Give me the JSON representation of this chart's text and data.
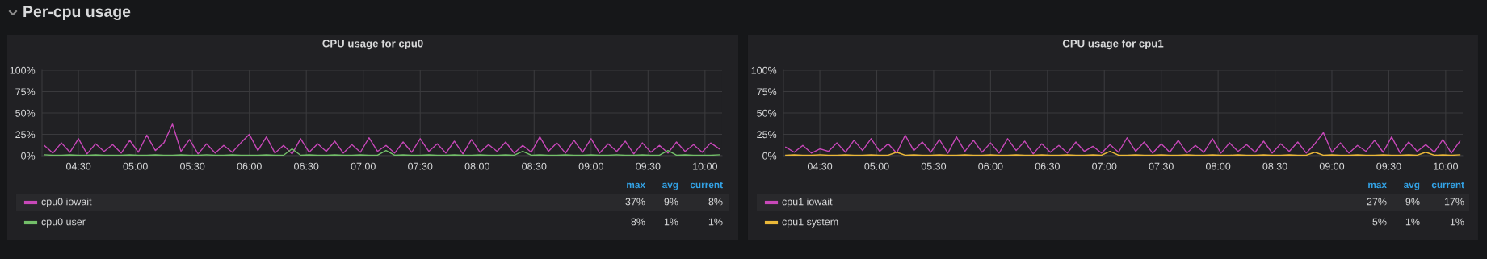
{
  "chart_data": [
    {
      "type": "other",
      "title": "Per-cpu usage"
    },
    {
      "type": "line",
      "title": "CPU usage for cpu0",
      "xlim": [
        4.18,
        10.15
      ],
      "ylim": [
        0,
        100
      ],
      "x": [
        4.2,
        4.275,
        4.35,
        4.425,
        4.5,
        4.575,
        4.65,
        4.725,
        4.8,
        4.875,
        4.95,
        5.025,
        5.1,
        5.175,
        5.25,
        5.325,
        5.4,
        5.475,
        5.55,
        5.625,
        5.7,
        5.775,
        5.85,
        5.925,
        6.0,
        6.075,
        6.15,
        6.225,
        6.3,
        6.375,
        6.45,
        6.525,
        6.6,
        6.675,
        6.75,
        6.825,
        6.9,
        6.975,
        7.05,
        7.125,
        7.2,
        7.275,
        7.35,
        7.425,
        7.5,
        7.575,
        7.65,
        7.725,
        7.8,
        7.875,
        7.95,
        8.025,
        8.1,
        8.175,
        8.25,
        8.325,
        8.4,
        8.475,
        8.55,
        8.625,
        8.7,
        8.775,
        8.85,
        8.925,
        9.0,
        9.075,
        9.15,
        9.225,
        9.3,
        9.375,
        9.45,
        9.525,
        9.6,
        9.675,
        9.75,
        9.825,
        9.9,
        9.975,
        10.05,
        10.125
      ],
      "xticks": [
        {
          "value": 4.5,
          "label": "04:30"
        },
        {
          "value": 5,
          "label": "05:00"
        },
        {
          "value": 5.5,
          "label": "05:30"
        },
        {
          "value": 6,
          "label": "06:00"
        },
        {
          "value": 6.5,
          "label": "06:30"
        },
        {
          "value": 7,
          "label": "07:00"
        },
        {
          "value": 7.5,
          "label": "07:30"
        },
        {
          "value": 8,
          "label": "08:00"
        },
        {
          "value": 8.5,
          "label": "08:30"
        },
        {
          "value": 9,
          "label": "09:00"
        },
        {
          "value": 9.5,
          "label": "09:30"
        },
        {
          "value": 10,
          "label": "10:00"
        }
      ],
      "yticks": [
        {
          "value": 0,
          "label": "0%"
        },
        {
          "value": 25,
          "label": "25%"
        },
        {
          "value": 50,
          "label": "50%"
        },
        {
          "value": 75,
          "label": "75%"
        },
        {
          "value": 100,
          "label": "100%"
        }
      ],
      "grid": true,
      "legend": "bottom",
      "series": [
        {
          "name": "cpu0 iowait",
          "color": "#c848b9",
          "values": [
            12,
            3,
            15,
            4,
            20,
            2,
            14,
            5,
            13,
            3,
            18,
            4,
            24,
            6,
            15,
            37,
            5,
            19,
            2,
            14,
            3,
            12,
            4,
            15,
            25,
            6,
            22,
            3,
            12,
            2,
            20,
            4,
            14,
            5,
            17,
            3,
            13,
            4,
            21,
            5,
            12,
            3,
            16,
            4,
            20,
            5,
            14,
            3,
            17,
            2,
            19,
            4,
            13,
            5,
            16,
            3,
            12,
            4,
            22,
            5,
            15,
            3,
            18,
            4,
            20,
            3,
            14,
            5,
            17,
            2,
            15,
            4,
            12,
            3,
            16,
            5,
            13,
            4,
            15,
            8
          ]
        },
        {
          "name": "cpu0 user",
          "color": "#73bf69",
          "values": [
            1,
            0.5,
            0.5,
            1,
            0.5,
            0.5,
            1,
            0.5,
            0.5,
            0.5,
            1,
            0.5,
            0.5,
            1,
            0.5,
            0.5,
            1,
            0.5,
            0.5,
            1,
            0.5,
            0.5,
            1,
            0.5,
            0.5,
            0.5,
            1,
            0.5,
            0.5,
            8,
            0.5,
            1,
            0.5,
            0.5,
            1,
            0.5,
            0.5,
            1,
            0.5,
            0.5,
            6,
            0.5,
            1,
            0.5,
            0.5,
            1,
            0.5,
            0.5,
            1,
            0.5,
            0.5,
            1,
            0.5,
            0.5,
            1,
            0.5,
            5,
            0.5,
            1,
            0.5,
            0.5,
            1,
            0.5,
            0.5,
            1,
            0.5,
            0.5,
            1,
            0.5,
            0.5,
            1,
            0.5,
            0.5,
            6,
            0.5,
            1,
            0.5,
            0.5,
            0.5,
            1
          ]
        }
      ],
      "annotations": [
        "max",
        "avg",
        "current",
        "37%",
        "9%",
        "8%",
        "8%",
        "1%",
        "1%"
      ]
    },
    {
      "type": "line",
      "title": "CPU usage for cpu1",
      "xlim": [
        4.18,
        10.15
      ],
      "ylim": [
        0,
        100
      ],
      "x": [
        4.2,
        4.275,
        4.35,
        4.425,
        4.5,
        4.575,
        4.65,
        4.725,
        4.8,
        4.875,
        4.95,
        5.025,
        5.1,
        5.175,
        5.25,
        5.325,
        5.4,
        5.475,
        5.55,
        5.625,
        5.7,
        5.775,
        5.85,
        5.925,
        6.0,
        6.075,
        6.15,
        6.225,
        6.3,
        6.375,
        6.45,
        6.525,
        6.6,
        6.675,
        6.75,
        6.825,
        6.9,
        6.975,
        7.05,
        7.125,
        7.2,
        7.275,
        7.35,
        7.425,
        7.5,
        7.575,
        7.65,
        7.725,
        7.8,
        7.875,
        7.95,
        8.025,
        8.1,
        8.175,
        8.25,
        8.325,
        8.4,
        8.475,
        8.55,
        8.625,
        8.7,
        8.775,
        8.85,
        8.925,
        9.0,
        9.075,
        9.15,
        9.225,
        9.3,
        9.375,
        9.45,
        9.525,
        9.6,
        9.675,
        9.75,
        9.825,
        9.9,
        9.975,
        10.05,
        10.125
      ],
      "xticks": [
        {
          "value": 4.5,
          "label": "04:30"
        },
        {
          "value": 5,
          "label": "05:00"
        },
        {
          "value": 5.5,
          "label": "05:30"
        },
        {
          "value": 6,
          "label": "06:00"
        },
        {
          "value": 6.5,
          "label": "06:30"
        },
        {
          "value": 7,
          "label": "07:00"
        },
        {
          "value": 7.5,
          "label": "07:30"
        },
        {
          "value": 8,
          "label": "08:00"
        },
        {
          "value": 8.5,
          "label": "08:30"
        },
        {
          "value": 9,
          "label": "09:00"
        },
        {
          "value": 9.5,
          "label": "09:30"
        },
        {
          "value": 10,
          "label": "10:00"
        }
      ],
      "yticks": [
        {
          "value": 0,
          "label": "0%"
        },
        {
          "value": 25,
          "label": "25%"
        },
        {
          "value": 50,
          "label": "50%"
        },
        {
          "value": 75,
          "label": "75%"
        },
        {
          "value": 100,
          "label": "100%"
        }
      ],
      "grid": true,
      "legend": "bottom",
      "series": [
        {
          "name": "cpu1 iowait",
          "color": "#c848b9",
          "values": [
            10,
            4,
            12,
            3,
            8,
            5,
            15,
            4,
            18,
            6,
            20,
            5,
            14,
            3,
            24,
            6,
            16,
            4,
            19,
            3,
            22,
            5,
            18,
            4,
            15,
            3,
            20,
            6,
            17,
            2,
            14,
            4,
            12,
            3,
            16,
            5,
            11,
            3,
            13,
            4,
            21,
            5,
            16,
            3,
            14,
            4,
            18,
            3,
            12,
            4,
            20,
            3,
            15,
            5,
            13,
            4,
            17,
            3,
            14,
            5,
            16,
            3,
            14,
            27,
            4,
            15,
            3,
            12,
            5,
            18,
            4,
            22,
            3,
            16,
            5,
            13,
            4,
            19,
            3,
            17
          ]
        },
        {
          "name": "cpu1 system",
          "color": "#eab839",
          "values": [
            0.5,
            1,
            0.5,
            0.5,
            1,
            0.5,
            0.5,
            1,
            0.5,
            0.5,
            1,
            0.5,
            0.5,
            4,
            0.5,
            1,
            0.5,
            0.5,
            1,
            0.5,
            0.5,
            1,
            0.5,
            0.5,
            1,
            0.5,
            0.5,
            1,
            0.5,
            0.5,
            1,
            0.5,
            0.5,
            1,
            0.5,
            0.5,
            1,
            0.5,
            5,
            0.5,
            0.5,
            1,
            0.5,
            0.5,
            1,
            0.5,
            0.5,
            1,
            0.5,
            0.5,
            1,
            0.5,
            0.5,
            1,
            0.5,
            0.5,
            1,
            0.5,
            0.5,
            1,
            0.5,
            0.5,
            4,
            0.5,
            1,
            0.5,
            0.5,
            1,
            0.5,
            0.5,
            1,
            0.5,
            0.5,
            1,
            0.5,
            4,
            0.5,
            1,
            0.5,
            1
          ]
        }
      ],
      "annotations": [
        "max",
        "avg",
        "current",
        "27%",
        "9%",
        "17%",
        "5%",
        "1%",
        "1%"
      ]
    }
  ]
}
